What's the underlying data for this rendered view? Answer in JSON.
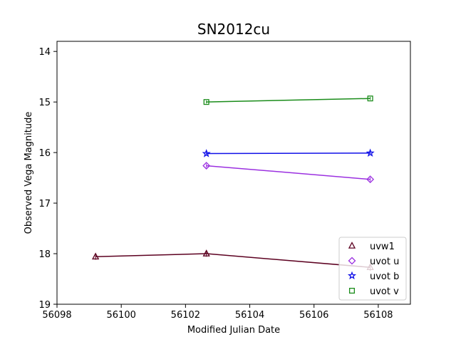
{
  "chart_data": {
    "type": "scatter",
    "title": "SN2012cu",
    "xlabel": "Modified Julian Date",
    "ylabel": "Observed Vega Magnitude",
    "xlim": [
      56098,
      56109
    ],
    "ylim": [
      19,
      13.8
    ],
    "y_inverted": true,
    "x_ticks": [
      56098,
      56100,
      56102,
      56104,
      56106,
      56108
    ],
    "y_ticks": [
      14,
      15,
      16,
      17,
      18,
      19
    ],
    "grid": false,
    "legend_position": "lower-right",
    "series": [
      {
        "name": "uvw1",
        "marker": "triangle",
        "color": "#5c0020",
        "x": [
          56099.2,
          56102.65,
          56107.75
        ],
        "y": [
          18.06,
          18.0,
          18.27
        ],
        "yerr": [
          0.06,
          0.06,
          0.07
        ]
      },
      {
        "name": "uvot u",
        "marker": "diamond",
        "color": "#9b30e0",
        "x": [
          56102.65,
          56107.75
        ],
        "y": [
          16.26,
          16.53
        ],
        "yerr": [
          0.04,
          0.04
        ]
      },
      {
        "name": "uvot b",
        "marker": "star",
        "color": "#1010e8",
        "x": [
          56102.65,
          56107.75
        ],
        "y": [
          16.02,
          16.01
        ],
        "yerr": [
          0.03,
          0.03
        ]
      },
      {
        "name": "uvot v",
        "marker": "square",
        "color": "#1a8c1a",
        "x": [
          56102.65,
          56107.75
        ],
        "y": [
          15.0,
          14.93
        ],
        "yerr": [
          0.03,
          0.03
        ]
      }
    ]
  }
}
